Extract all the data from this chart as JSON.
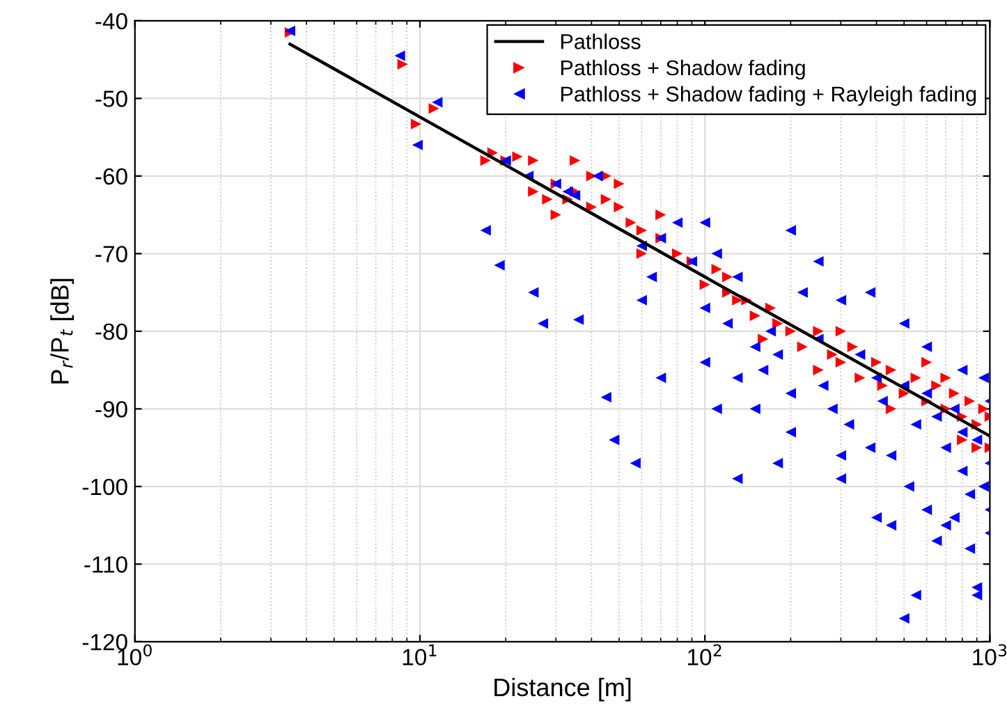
{
  "chart_data": {
    "type": "scatter",
    "xlabel": "Distance [m]",
    "ylabel": "P$_{r}$/P$_{t}$ [dB]",
    "log": "x",
    "grid": true,
    "legend": "top right",
    "marker": "triangle",
    "xlim": [
      1,
      1000
    ],
    "xticks": [
      {
        "value": 1,
        "label": "10$^{0}$"
      },
      {
        "value": 10,
        "label": "10$^{1}$"
      },
      {
        "value": 100,
        "label": "10$^{2}$"
      },
      {
        "value": 1000,
        "label": "10$^{3}$"
      }
    ],
    "ylim": [
      -120,
      -40
    ],
    "yticks": [
      -120,
      -110,
      -100,
      -90,
      -80,
      -70,
      -60,
      -50,
      -40
    ],
    "series": [
      {
        "name": "Pathloss",
        "type": "line",
        "color": "#000000",
        "marker": "none",
        "x": [
          3.5,
          100,
          1000
        ],
        "values": [
          -43,
          -73,
          -93.5
        ]
      },
      {
        "name": "Pathloss + Shadow fading",
        "color": "#ff0000",
        "x": [
          3.5,
          8.7,
          9.7,
          11.2,
          17,
          18,
          20,
          22,
          25,
          28,
          30,
          33,
          35,
          40,
          45,
          45,
          50,
          55,
          60,
          70,
          80,
          90,
          100,
          110,
          120,
          130,
          140,
          150,
          170,
          200,
          220,
          250,
          280,
          300,
          330,
          350,
          400,
          420,
          450,
          500,
          550,
          600,
          650,
          700,
          750,
          800,
          850,
          900,
          950,
          1000,
          600,
          700,
          900,
          300,
          180,
          70,
          40,
          25,
          60,
          120,
          160,
          250,
          450,
          800,
          1000,
          35,
          50,
          30
        ],
        "values": [
          -41.5,
          -45.6,
          -53.3,
          -51.3,
          -58,
          -57,
          -58,
          -57.5,
          -62,
          -63,
          -61,
          -63,
          -62,
          -60,
          -60,
          -63,
          -64,
          -66,
          -67,
          -68,
          -70,
          -71,
          -74,
          -72,
          -75,
          -76,
          -76,
          -78,
          -77,
          -80,
          -82,
          -80,
          -83,
          -84,
          -82,
          -86,
          -84,
          -87,
          -85,
          -88,
          -86,
          -89,
          -87,
          -90,
          -88,
          -91,
          -89,
          -92,
          -90,
          -91,
          -84,
          -86,
          -95,
          -80,
          -79,
          -65,
          -64,
          -58,
          -70,
          -73,
          -81,
          -85,
          -90,
          -94,
          -95,
          -58,
          -61,
          -65
        ]
      },
      {
        "name": "Pathloss + Shadow fading + Rayleigh fading",
        "color": "#0000ff",
        "x": [
          3.5,
          8.5,
          9.8,
          11.5,
          20,
          24,
          17,
          19,
          25,
          27,
          30,
          33,
          35,
          36,
          45,
          48,
          57,
          42,
          60,
          65,
          70,
          80,
          90,
          100,
          100,
          110,
          120,
          130,
          150,
          160,
          170,
          180,
          200,
          200,
          220,
          250,
          260,
          280,
          300,
          320,
          350,
          380,
          400,
          420,
          450,
          500,
          520,
          550,
          600,
          600,
          650,
          700,
          700,
          750,
          800,
          800,
          850,
          900,
          900,
          950,
          1000,
          1000,
          1000,
          500,
          550,
          300,
          200,
          180,
          130,
          130,
          110,
          70,
          60,
          250,
          380,
          500,
          600,
          800,
          950,
          450,
          650,
          750,
          850,
          900,
          1000,
          400,
          300,
          150,
          100
        ],
        "values": [
          -41.3,
          -44.5,
          -56,
          -50.5,
          -58,
          -60,
          -67,
          -71.5,
          -75,
          -79,
          -61,
          -62,
          -62.5,
          -78.5,
          -88.5,
          -94,
          -97,
          -60,
          -69,
          -73,
          -68,
          -66,
          -71,
          -66,
          -77,
          -70,
          -79,
          -73,
          -82,
          -85,
          -80,
          -83,
          -67,
          -88,
          -75,
          -81,
          -87,
          -90,
          -76,
          -92,
          -83,
          -95,
          -86,
          -89,
          -96,
          -87,
          -100,
          -92,
          -88,
          -103,
          -91,
          -95,
          -105,
          -90,
          -93,
          -98,
          -101,
          -94,
          -113,
          -100,
          -97,
          -103,
          -89,
          -117,
          -114,
          -99,
          -93,
          -97,
          -99,
          -86,
          -90,
          -86,
          -76,
          -71,
          -75,
          -79,
          -82,
          -85,
          -86,
          -105,
          -107,
          -104,
          -108,
          -114,
          -106,
          -104,
          -96,
          -90,
          -84
        ]
      }
    ]
  }
}
